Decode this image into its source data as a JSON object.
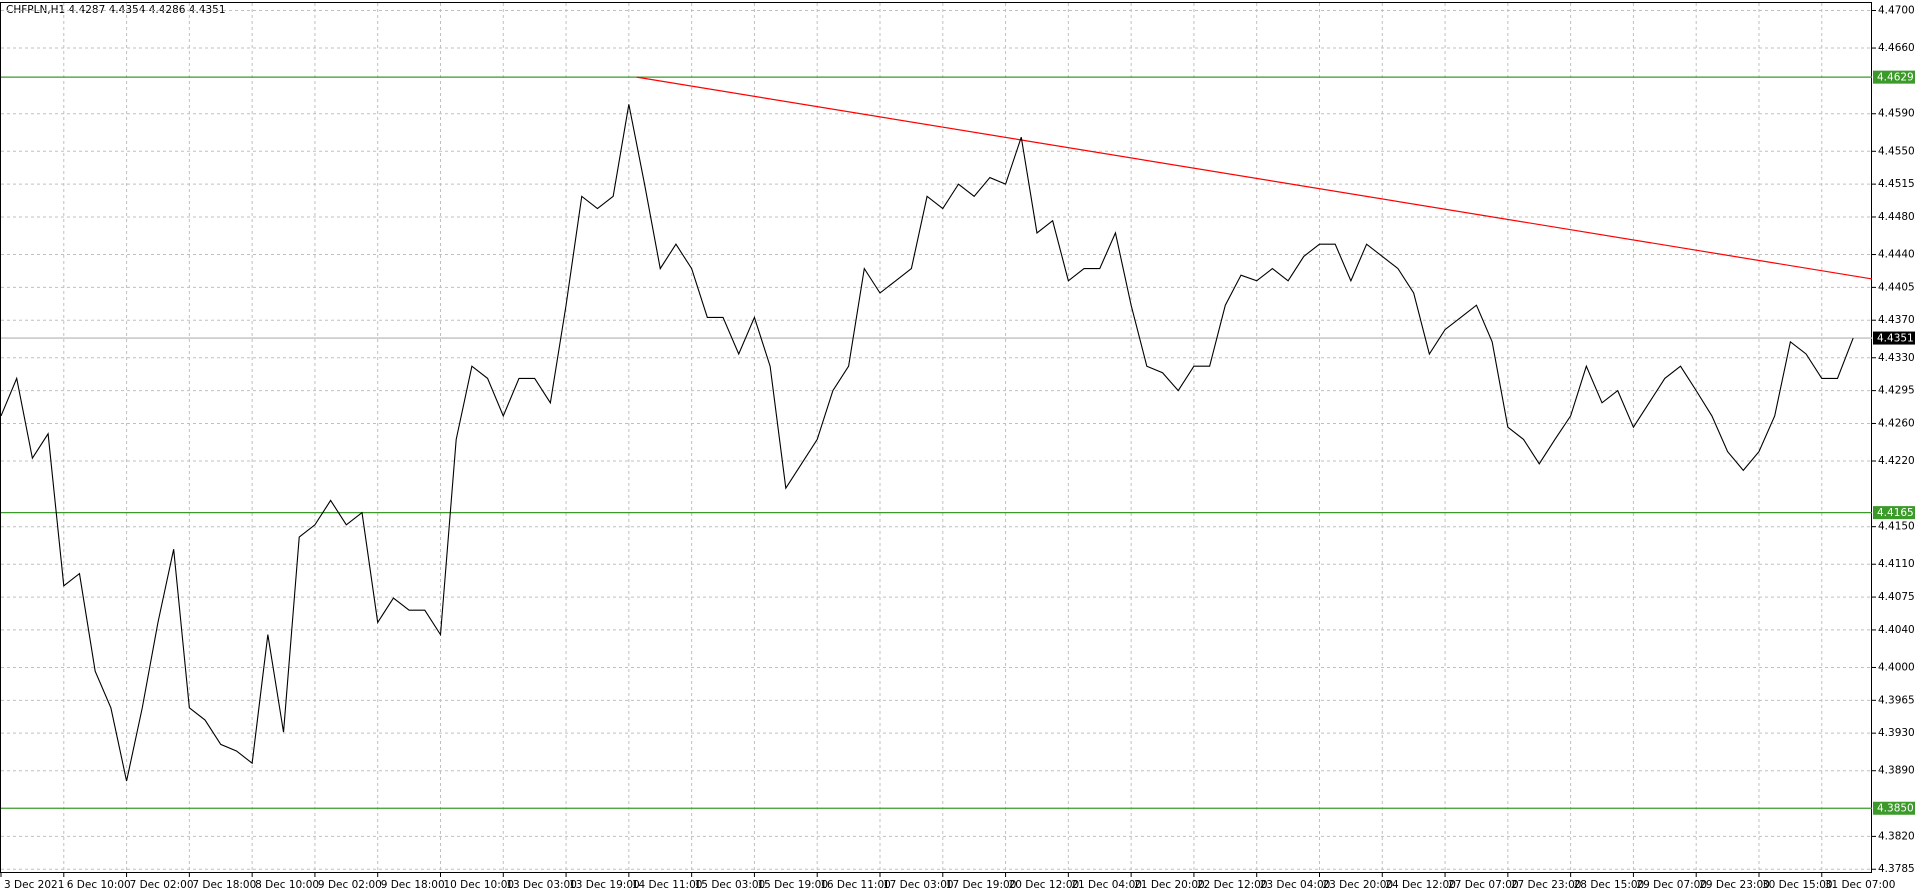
{
  "chart_data": {
    "type": "line",
    "title": "CHFPLN,H1  4.4287 4.4354 4.4286 4.4351",
    "categories": [
      "3 Dec 2021",
      null,
      null,
      null,
      "6 Dec 10:00",
      null,
      null,
      null,
      "7 Dec 02:00",
      null,
      null,
      null,
      "7 Dec 18:00",
      null,
      null,
      null,
      "8 Dec 10:00",
      null,
      null,
      null,
      "9 Dec 02:00",
      null,
      null,
      null,
      "9 Dec 18:00",
      null,
      null,
      null,
      "10 Dec 10:00",
      null,
      null,
      null,
      "13 Dec 03:00",
      null,
      null,
      null,
      "13 Dec 19:00",
      null,
      null,
      null,
      "14 Dec 11:00",
      null,
      null,
      null,
      "15 Dec 03:00",
      null,
      null,
      null,
      "15 Dec 19:00",
      null,
      null,
      null,
      "16 Dec 11:00",
      null,
      null,
      null,
      "17 Dec 03:00",
      null,
      null,
      null,
      "17 Dec 19:00",
      null,
      null,
      null,
      "20 Dec 12:00",
      null,
      null,
      null,
      "21 Dec 04:00",
      null,
      null,
      null,
      "21 Dec 20:00",
      null,
      null,
      null,
      "22 Dec 12:00",
      null,
      null,
      null,
      "23 Dec 04:00",
      null,
      null,
      null,
      "23 Dec 20:00",
      null,
      null,
      null,
      "24 Dec 12:00",
      null,
      null,
      null,
      "27 Dec 07:00",
      null,
      null,
      null,
      "27 Dec 23:00",
      null,
      null,
      null,
      "28 Dec 15:00",
      null,
      null,
      null,
      "29 Dec 07:00",
      null,
      null,
      null,
      "29 Dec 23:00",
      null,
      null,
      null,
      "30 Dec 15:00",
      null,
      null,
      null,
      "31 Dec 07:00",
      null,
      null
    ],
    "series": [
      {
        "name": "CHFPLN,H1",
        "color": "#000000",
        "values": [
          4.4268,
          4.4308,
          4.4223,
          4.4249,
          4.4087,
          4.41,
          4.3996,
          4.3957,
          4.3879,
          4.3957,
          4.4048,
          4.4126,
          4.3957,
          4.3944,
          4.3918,
          4.3911,
          4.3898,
          4.4035,
          4.3931,
          4.4139,
          4.4152,
          4.4178,
          4.4152,
          4.4165,
          4.4048,
          4.4074,
          4.4061,
          4.4061,
          4.4035,
          4.4243,
          4.4321,
          4.4308,
          4.4268,
          4.4308,
          4.4308,
          4.4282,
          4.4386,
          4.4502,
          4.4489,
          4.4502,
          4.46,
          4.4515,
          4.4425,
          4.4451,
          4.4425,
          4.4373,
          4.4373,
          4.4334,
          4.4373,
          4.4321,
          4.4191,
          4.4217,
          4.4243,
          4.4295,
          4.4321,
          4.4425,
          4.4399,
          4.4412,
          4.4425,
          4.4502,
          4.4489,
          4.4515,
          4.4502,
          4.4522,
          4.4515,
          4.4565,
          4.4463,
          4.4476,
          4.4412,
          4.4425,
          4.4425,
          4.4463,
          4.4386,
          4.4321,
          4.4314,
          4.4295,
          4.4321,
          4.4321,
          4.4386,
          4.4418,
          4.4412,
          4.4425,
          4.4412,
          4.4438,
          4.4451,
          4.4451,
          4.4412,
          4.4451,
          4.4438,
          4.4425,
          4.4399,
          4.4334,
          4.436,
          4.4373,
          4.4386,
          4.4347,
          4.4256,
          4.4243,
          4.4217,
          4.4243,
          4.4268,
          4.4321,
          4.4282,
          4.4295,
          4.4256,
          4.4282,
          4.4308,
          4.4321,
          4.4295,
          4.4268,
          4.423,
          4.421,
          4.423,
          4.4268,
          4.4347,
          4.4334,
          4.4308,
          4.4308,
          4.4351
        ]
      }
    ],
    "ylim": [
      4.3781,
      4.4708
    ],
    "yticks": [
      {
        "value": 4.47,
        "label": "4.4700"
      },
      {
        "value": 4.466,
        "label": "4.4660"
      },
      {
        "value": 4.459,
        "label": "4.4590"
      },
      {
        "value": 4.455,
        "label": "4.4550"
      },
      {
        "value": 4.4515,
        "label": "4.4515"
      },
      {
        "value": 4.448,
        "label": "4.4480"
      },
      {
        "value": 4.444,
        "label": "4.4440"
      },
      {
        "value": 4.4405,
        "label": "4.4405"
      },
      {
        "value": 4.437,
        "label": "4.4370"
      },
      {
        "value": 4.433,
        "label": "4.4330"
      },
      {
        "value": 4.4295,
        "label": "4.4295"
      },
      {
        "value": 4.426,
        "label": "4.4260"
      },
      {
        "value": 4.422,
        "label": "4.4220"
      },
      {
        "value": 4.415,
        "label": "4.4150"
      },
      {
        "value": 4.411,
        "label": "4.4110"
      },
      {
        "value": 4.4075,
        "label": "4.4075"
      },
      {
        "value": 4.404,
        "label": "4.4040"
      },
      {
        "value": 4.4,
        "label": "4.4000"
      },
      {
        "value": 4.3965,
        "label": "4.3965"
      },
      {
        "value": 4.393,
        "label": "4.3930"
      },
      {
        "value": 4.389,
        "label": "4.3890"
      },
      {
        "value": 4.382,
        "label": "4.3820"
      },
      {
        "value": 4.3785,
        "label": "4.3785"
      }
    ],
    "grid": true,
    "hlines": [
      {
        "value": 4.4629,
        "color": "#3c9a2a"
      },
      {
        "value": 4.4165,
        "color": "#3c9a2a"
      },
      {
        "value": 4.385,
        "label": "4.3850",
        "color": "#3c9a2a"
      },
      {
        "value": 4.4351,
        "color": "#c0c0c0",
        "label_color": "#000000"
      }
    ],
    "trendline": {
      "x": [
        40.5,
        119.2
      ],
      "y": [
        4.4629,
        4.4414
      ],
      "color": "#ff0000"
    }
  }
}
